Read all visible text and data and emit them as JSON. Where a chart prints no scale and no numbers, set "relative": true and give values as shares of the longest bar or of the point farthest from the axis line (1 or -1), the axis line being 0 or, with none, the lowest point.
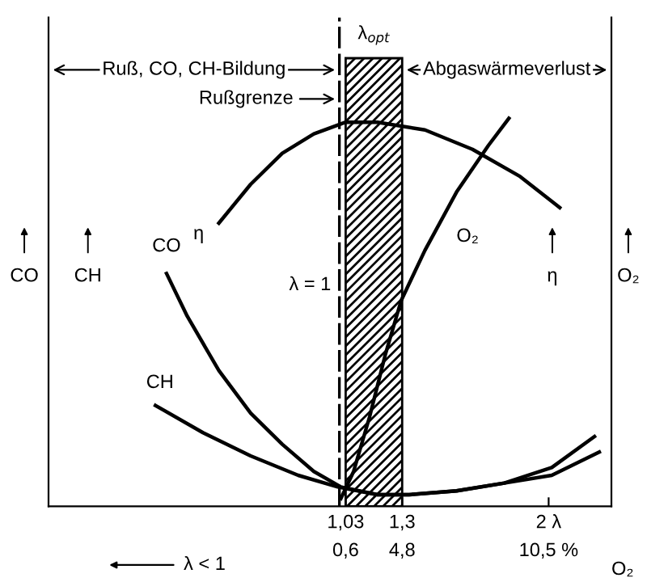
{
  "chart_data": {
    "type": "line",
    "relative": true,
    "xlim": [
      -0.39,
      2.3
    ],
    "xticks": [
      {
        "value": 1.03,
        "label": "1,03"
      },
      {
        "value": 1.3,
        "label": "1,3"
      },
      {
        "value": 2,
        "label": "2 λ"
      }
    ],
    "xlabel": "O₂",
    "ylabel": "CO",
    "y2label": "O₂",
    "tick_labels": "x",
    "grid": false,
    "legend": false,
    "marker": "none",
    "line_style": "solid",
    "series": [
      {
        "name": "η",
        "color": "#000000",
        "x": [
          0.424,
          0.576,
          0.727,
          0.878,
          1.03,
          1.182,
          1.409,
          1.636,
          1.864,
          2.053
        ],
        "values": [
          0.73,
          0.83,
          0.91,
          0.96,
          0.99,
          0.99,
          0.97,
          0.92,
          0.85,
          0.77
        ]
      },
      {
        "name": "CO",
        "color": "#000000",
        "x": [
          0.174,
          0.273,
          0.424,
          0.576,
          0.727,
          0.878,
          1.007,
          1.182,
          1.333,
          1.56,
          1.788,
          2.015,
          2.219
        ],
        "values": [
          0.6,
          0.49,
          0.35,
          0.24,
          0.16,
          0.09,
          0.05,
          0.03,
          0.03,
          0.04,
          0.06,
          0.1,
          0.18
        ]
      },
      {
        "name": "CH",
        "color": "#000000",
        "x": [
          0.121,
          0.348,
          0.576,
          0.803,
          0.992,
          1.182,
          1.333,
          1.56,
          1.788,
          2.015,
          2.242
        ],
        "values": [
          0.26,
          0.19,
          0.13,
          0.08,
          0.05,
          0.03,
          0.03,
          0.04,
          0.06,
          0.08,
          0.14
        ]
      },
      {
        "name": "O₂",
        "color": "#000000",
        "x": [
          1.007,
          1.068,
          1.144,
          1.219,
          1.295,
          1.409,
          1.56,
          1.712,
          1.81
        ],
        "values": [
          0.02,
          0.09,
          0.23,
          0.39,
          0.53,
          0.66,
          0.81,
          0.93,
          1.0
        ]
      }
    ],
    "ref_lines": [
      {
        "axis": "x",
        "value": 1,
        "label": "λ = 1",
        "line_style": "dashed",
        "color": "#000000"
      }
    ],
    "bands": [
      {
        "axis": "x",
        "from": 1.03,
        "to": 1.3,
        "label": "λ$_{opt}$",
        "color": "#000000"
      }
    ],
    "annotations": [
      "Ruß, CO, CH-Bildung",
      "Rußgrenze",
      "Abgaswärmeverlust",
      "λ < 1",
      "CH",
      "η",
      "0,6",
      "4,8",
      "10,5 %"
    ]
  }
}
